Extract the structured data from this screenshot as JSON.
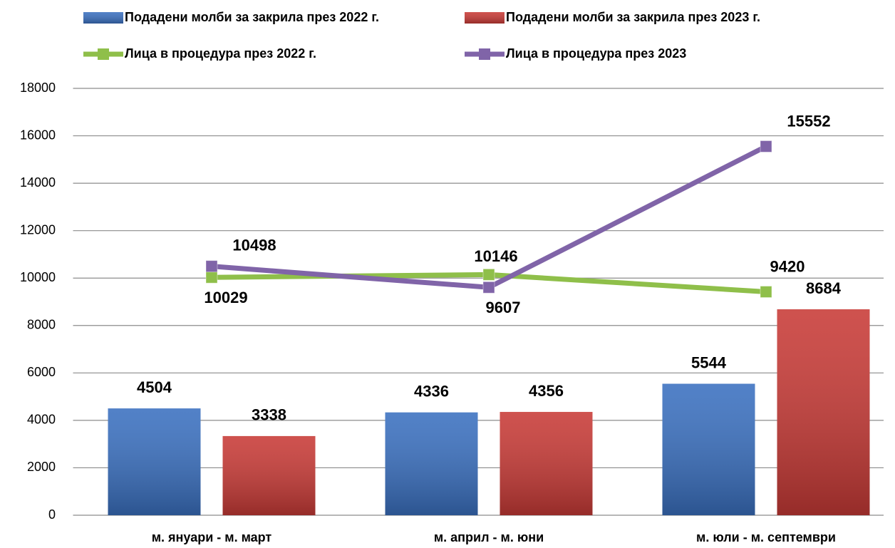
{
  "chart_data": {
    "type": "bar",
    "categories": [
      "м. януари - м. март",
      "м. април - м. юни",
      "м. юли - м. септември"
    ],
    "series": [
      {
        "name": "Подадени молби за закрила през 2022 г.",
        "type": "bar",
        "color": "#3a70c0",
        "values": [
          4504,
          4336,
          5544
        ]
      },
      {
        "name": "Подадени молби за закрила през 2023 г.",
        "type": "bar",
        "color": "#c83a36",
        "values": [
          3338,
          4356,
          8684
        ]
      },
      {
        "name": "Лица в процедура през 2022 г.",
        "type": "line",
        "color": "#8fbf4a",
        "values": [
          10029,
          10146,
          9420
        ]
      },
      {
        "name": "Лица в процедура през 2023",
        "type": "line",
        "color": "#8064a8",
        "values": [
          10498,
          9607,
          15552
        ]
      }
    ],
    "ylim": [
      0,
      18000
    ],
    "yticks": [
      0,
      2000,
      4000,
      6000,
      8000,
      10000,
      12000,
      14000,
      16000,
      18000
    ],
    "grid": true,
    "legend": "top"
  }
}
